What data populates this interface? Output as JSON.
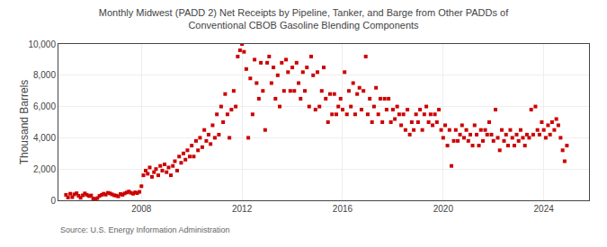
{
  "chart_data": {
    "type": "scatter",
    "title": "Monthly Midwest (PADD 2) Net Receipts by Pipeline, Tanker, and Barge from Other PADDs of\nConventional CBOB Gasoline Blending Components",
    "ylabel": "Thousand Barrels",
    "annotations": [
      "Source: U.S. Energy Information Administration"
    ],
    "color": "#cc0000",
    "marker": "square",
    "grid": true,
    "xlim": [
      2004.7,
      2025.8
    ],
    "xticks": [
      2008,
      2012,
      2016,
      2020,
      2024
    ],
    "ylim": [
      0,
      10000
    ],
    "yticks": [
      0,
      {
        "value": 2000,
        "label": "2,000"
      },
      {
        "value": 4000,
        "label": "4,000"
      },
      {
        "value": 6000,
        "label": "6,000"
      },
      {
        "value": 8000,
        "label": "8,000"
      },
      {
        "value": 10000,
        "label": "10,000"
      }
    ],
    "x": [
      2005.0,
      2005.08,
      2005.17,
      2005.25,
      2005.33,
      2005.42,
      2005.5,
      2005.58,
      2005.67,
      2005.75,
      2005.83,
      2005.92,
      2006.0,
      2006.08,
      2006.17,
      2006.25,
      2006.33,
      2006.42,
      2006.5,
      2006.58,
      2006.67,
      2006.75,
      2006.83,
      2006.92,
      2007.0,
      2007.08,
      2007.17,
      2007.25,
      2007.33,
      2007.42,
      2007.5,
      2007.58,
      2007.67,
      2007.75,
      2007.83,
      2007.92,
      2008.0,
      2008.08,
      2008.17,
      2008.25,
      2008.33,
      2008.42,
      2008.5,
      2008.58,
      2008.67,
      2008.75,
      2008.83,
      2008.92,
      2009.0,
      2009.08,
      2009.17,
      2009.25,
      2009.33,
      2009.42,
      2009.5,
      2009.58,
      2009.67,
      2009.75,
      2009.83,
      2009.92,
      2010.0,
      2010.08,
      2010.17,
      2010.25,
      2010.33,
      2010.42,
      2010.5,
      2010.58,
      2010.67,
      2010.75,
      2010.83,
      2010.92,
      2011.0,
      2011.08,
      2011.17,
      2011.25,
      2011.33,
      2011.42,
      2011.5,
      2011.58,
      2011.67,
      2011.75,
      2011.83,
      2011.92,
      2012.0,
      2012.08,
      2012.17,
      2012.25,
      2012.33,
      2012.42,
      2012.5,
      2012.58,
      2012.67,
      2012.75,
      2012.83,
      2012.92,
      2013.0,
      2013.08,
      2013.17,
      2013.25,
      2013.33,
      2013.42,
      2013.5,
      2013.58,
      2013.67,
      2013.75,
      2013.83,
      2013.92,
      2014.0,
      2014.08,
      2014.17,
      2014.25,
      2014.33,
      2014.42,
      2014.5,
      2014.58,
      2014.67,
      2014.75,
      2014.83,
      2014.92,
      2015.0,
      2015.08,
      2015.17,
      2015.25,
      2015.33,
      2015.42,
      2015.5,
      2015.58,
      2015.67,
      2015.75,
      2015.83,
      2015.92,
      2016.0,
      2016.08,
      2016.17,
      2016.25,
      2016.33,
      2016.42,
      2016.5,
      2016.58,
      2016.67,
      2016.75,
      2016.83,
      2016.92,
      2017.0,
      2017.08,
      2017.17,
      2017.25,
      2017.33,
      2017.42,
      2017.5,
      2017.58,
      2017.67,
      2017.75,
      2017.83,
      2017.92,
      2018.0,
      2018.08,
      2018.17,
      2018.25,
      2018.33,
      2018.42,
      2018.5,
      2018.58,
      2018.67,
      2018.75,
      2018.83,
      2018.92,
      2019.0,
      2019.08,
      2019.17,
      2019.25,
      2019.33,
      2019.42,
      2019.5,
      2019.58,
      2019.67,
      2019.75,
      2019.83,
      2019.92,
      2020.0,
      2020.08,
      2020.17,
      2020.25,
      2020.33,
      2020.42,
      2020.5,
      2020.58,
      2020.67,
      2020.75,
      2020.83,
      2020.92,
      2021.0,
      2021.08,
      2021.17,
      2021.25,
      2021.33,
      2021.42,
      2021.5,
      2021.58,
      2021.67,
      2021.75,
      2021.83,
      2021.92,
      2022.0,
      2022.08,
      2022.17,
      2022.25,
      2022.33,
      2022.42,
      2022.5,
      2022.58,
      2022.67,
      2022.75,
      2022.83,
      2022.92,
      2023.0,
      2023.08,
      2023.17,
      2023.25,
      2023.33,
      2023.42,
      2023.5,
      2023.58,
      2023.67,
      2023.75,
      2023.83,
      2023.92,
      2024.0,
      2024.08,
      2024.17,
      2024.25,
      2024.33,
      2024.42,
      2024.5,
      2024.58,
      2024.67,
      2024.75,
      2024.83,
      2024.92
    ],
    "values": [
      350,
      180,
      420,
      200,
      380,
      450,
      290,
      160,
      320,
      440,
      350,
      270,
      310,
      120,
      80,
      140,
      280,
      350,
      420,
      360,
      480,
      440,
      380,
      320,
      300,
      250,
      400,
      350,
      440,
      500,
      560,
      480,
      420,
      510,
      460,
      540,
      900,
      1600,
      1900,
      1700,
      2100,
      1500,
      1800,
      2000,
      1600,
      2200,
      1900,
      2300,
      1800,
      2100,
      1600,
      2200,
      2500,
      1900,
      2800,
      2400,
      3000,
      2600,
      3200,
      2800,
      3500,
      2800,
      3800,
      3200,
      4000,
      3400,
      4500,
      3800,
      4200,
      3600,
      4800,
      4000,
      5500,
      4200,
      6000,
      5000,
      6800,
      5500,
      4000,
      5800,
      7000,
      6000,
      9200,
      9600,
      10000,
      9500,
      8400,
      4000,
      7800,
      5500,
      9000,
      7500,
      6500,
      8800,
      7000,
      4500,
      8800,
      9200,
      7500,
      8500,
      6500,
      8000,
      6000,
      8800,
      7000,
      9000,
      8200,
      7000,
      8500,
      7000,
      8800,
      7500,
      6500,
      8200,
      7000,
      8500,
      6000,
      9200,
      8000,
      5800,
      8200,
      6000,
      7000,
      8500,
      6500,
      5000,
      6800,
      5500,
      6800,
      5500,
      6000,
      6500,
      5800,
      8200,
      5500,
      7000,
      6000,
      7500,
      5500,
      6800,
      7200,
      5800,
      7000,
      9200,
      5500,
      6500,
      5000,
      6000,
      7200,
      5500,
      6500,
      5000,
      6500,
      5800,
      6500,
      5000,
      5800,
      5200,
      6000,
      5500,
      4800,
      5500,
      4500,
      5800,
      4200,
      5000,
      4500,
      5500,
      5000,
      5800,
      4500,
      5500,
      6000,
      5000,
      5500,
      4800,
      5500,
      5000,
      5800,
      4500,
      4000,
      4800,
      3500,
      4500,
      2200,
      3800,
      4500,
      3800,
      4200,
      4800,
      4000,
      4500,
      3800,
      4200,
      3500,
      4800,
      4200,
      3500,
      4500,
      3800,
      4500,
      4200,
      5000,
      4200,
      3800,
      5800,
      4000,
      3200,
      4500,
      3800,
      4200,
      3500,
      4500,
      4000,
      3500,
      4200,
      3800,
      4500,
      4000,
      3500,
      4200,
      4000,
      5800,
      4200,
      6000,
      4500,
      4200,
      5000,
      4500,
      4000,
      4800,
      4200,
      5000,
      4500,
      5200,
      4800,
      4000,
      3200,
      2500,
      3500
    ]
  }
}
